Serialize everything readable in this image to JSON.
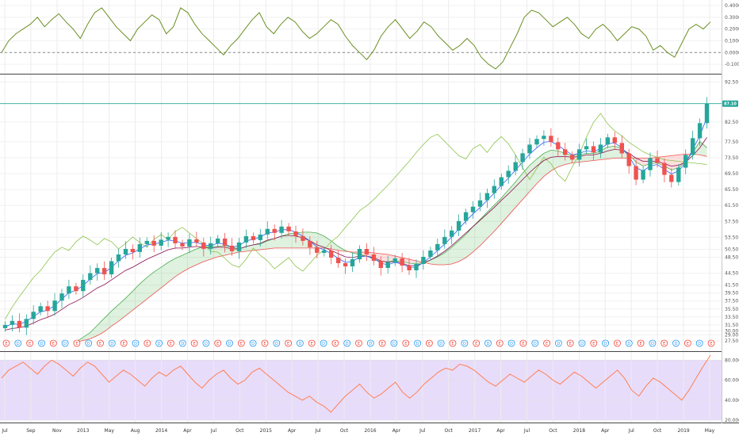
{
  "chart_data": [
    {
      "type": "line",
      "panel": "top-oscillator",
      "y_ticks": [
        "0.4000",
        "0.3000",
        "0.2000",
        "0.1000",
        "0.0000",
        "-0.1000"
      ],
      "ylim": [
        -0.16,
        0.42
      ],
      "zero_line": true,
      "x": [
        0,
        1,
        2,
        3,
        4,
        5,
        6,
        7,
        8,
        9,
        10,
        11,
        12,
        13,
        14,
        15,
        16,
        17,
        18,
        19,
        20,
        21,
        22,
        23,
        24,
        25,
        26,
        27,
        28,
        29,
        30,
        31,
        32,
        33,
        34,
        35,
        36,
        37,
        38,
        39,
        40,
        41,
        42,
        43,
        44,
        45,
        46,
        47,
        48,
        49,
        50,
        51,
        52,
        53,
        54,
        55,
        56,
        57,
        58,
        59,
        60,
        61,
        62,
        63,
        64,
        65,
        66,
        67,
        68,
        69,
        70,
        71,
        72,
        73,
        74,
        75,
        76,
        77,
        78,
        79,
        80,
        81,
        82,
        83,
        84,
        85,
        86,
        87,
        88,
        89,
        90,
        91,
        92,
        93,
        94,
        95,
        96,
        97,
        98,
        99
      ],
      "series": [
        {
          "color": "#6b8f23",
          "values": [
            0.0,
            0.1,
            0.16,
            0.2,
            0.24,
            0.3,
            0.22,
            0.28,
            0.33,
            0.26,
            0.2,
            0.12,
            0.24,
            0.34,
            0.38,
            0.3,
            0.22,
            0.16,
            0.1,
            0.2,
            0.26,
            0.32,
            0.28,
            0.16,
            0.22,
            0.38,
            0.34,
            0.24,
            0.16,
            0.1,
            0.04,
            -0.02,
            0.06,
            0.12,
            0.2,
            0.28,
            0.34,
            0.22,
            0.16,
            0.24,
            0.3,
            0.26,
            0.18,
            0.12,
            0.16,
            0.22,
            0.28,
            0.24,
            0.14,
            0.06,
            0.0,
            -0.06,
            0.02,
            0.14,
            0.22,
            0.28,
            0.2,
            0.12,
            0.18,
            0.26,
            0.22,
            0.14,
            0.08,
            0.02,
            0.06,
            0.12,
            0.06,
            -0.04,
            -0.1,
            -0.14,
            -0.08,
            0.04,
            0.16,
            0.3,
            0.36,
            0.34,
            0.28,
            0.22,
            0.26,
            0.3,
            0.24,
            0.16,
            0.12,
            0.2,
            0.24,
            0.18,
            0.1,
            0.16,
            0.22,
            0.2,
            0.14,
            0.02,
            0.06,
            0.0,
            -0.04,
            0.08,
            0.2,
            0.24,
            0.2,
            0.26
          ]
        }
      ]
    },
    {
      "type": "candlestick",
      "panel": "main-price",
      "y_ticks": [
        "92.50",
        "82.50",
        "77.50",
        "73.50",
        "69.50",
        "65.50",
        "61.50",
        "57.50",
        "53.50",
        "50.50",
        "48.50",
        "44.50",
        "41.50",
        "39.50",
        "37.50",
        "35.50",
        "33.50",
        "31.50",
        "30.00",
        "29.00",
        "27.50"
      ],
      "ylim": [
        25.5,
        94
      ],
      "last_price": "87.10",
      "last_price_color": "#26a69a",
      "x_labels": [
        "Jul",
        "Sep",
        "Nov",
        "2013",
        "May",
        "Aug",
        "2014",
        "Apr",
        "Jul",
        "Oct",
        "2015",
        "Apr",
        "Jul",
        "Oct",
        "2016",
        "Apr",
        "Jul",
        "Oct",
        "2017",
        "Apr",
        "Jul",
        "Oct",
        "2018",
        "Apr",
        "Jul",
        "Oct",
        "2019",
        "May"
      ],
      "grid": true,
      "indicator": "Ichimoku Cloud",
      "up_color": "#26a69a",
      "down_color": "#ef5350",
      "series": [
        {
          "name": "",
          "role": "close",
          "values": [
            31.5,
            32.5,
            30.8,
            33.0,
            34.8,
            36.2,
            35.0,
            37.6,
            39.4,
            41.2,
            40.0,
            42.8,
            44.5,
            45.8,
            44.2,
            47.5,
            49.2,
            50.6,
            49.8,
            51.8,
            52.6,
            51.4,
            52.9,
            53.6,
            52.0,
            51.2,
            53.0,
            52.2,
            50.6,
            52.0,
            53.2,
            51.4,
            50.0,
            52.2,
            53.8,
            52.8,
            54.2,
            55.6,
            54.6,
            56.2,
            55.0,
            53.8,
            52.6,
            51.0,
            49.6,
            50.2,
            48.4,
            47.0,
            46.2,
            48.0,
            50.6,
            49.2,
            47.6,
            45.8,
            47.2,
            48.2,
            46.4,
            45.2,
            46.8,
            48.6,
            50.2,
            51.8,
            53.6,
            55.2,
            57.6,
            59.8,
            61.2,
            62.8,
            64.6,
            66.4,
            68.6,
            70.2,
            72.4,
            74.6,
            76.8,
            78.2,
            79.0,
            77.4,
            75.6,
            74.2,
            73.0,
            75.6,
            76.4,
            74.8,
            76.8,
            78.6,
            77.2,
            74.6,
            71.4,
            68.0,
            70.4,
            73.4,
            72.2,
            69.2,
            67.4,
            71.0,
            74.2,
            78.4,
            82.2,
            87.1
          ]
        },
        {
          "name": "",
          "role": "tenkan",
          "color": "#2962ff",
          "values": [
            31.0,
            31.8,
            31.6,
            32.4,
            33.6,
            34.8,
            35.2,
            36.4,
            38.0,
            39.6,
            40.2,
            41.4,
            43.0,
            44.4,
            44.6,
            46.0,
            47.6,
            49.0,
            49.6,
            50.6,
            51.6,
            51.8,
            52.2,
            52.8,
            52.6,
            52.0,
            52.2,
            52.2,
            51.6,
            51.4,
            52.0,
            51.8,
            51.0,
            51.4,
            52.6,
            53.0,
            53.6,
            54.6,
            54.8,
            55.4,
            55.4,
            54.8,
            53.8,
            52.6,
            51.0,
            50.4,
            49.4,
            48.2,
            47.2,
            47.4,
            48.6,
            48.8,
            48.2,
            47.0,
            46.6,
            47.2,
            46.8,
            46.0,
            46.0,
            47.2,
            48.6,
            50.2,
            51.8,
            53.6,
            55.6,
            57.6,
            59.4,
            61.0,
            62.8,
            64.6,
            66.6,
            68.4,
            70.4,
            72.4,
            74.4,
            76.0,
            77.4,
            77.6,
            76.6,
            75.4,
            74.2,
            74.6,
            75.2,
            75.0,
            75.8,
            77.0,
            77.2,
            76.0,
            73.8,
            71.0,
            70.2,
            71.4,
            71.8,
            70.6,
            69.4,
            70.2,
            72.2,
            75.6,
            79.0,
            83.6
          ]
        },
        {
          "name": "",
          "role": "kijun",
          "color": "#880e4f",
          "values": [
            30.2,
            30.6,
            30.8,
            31.2,
            32.0,
            32.8,
            33.4,
            34.2,
            35.4,
            36.6,
            37.4,
            38.4,
            39.6,
            40.8,
            41.6,
            42.8,
            44.0,
            45.2,
            46.0,
            47.0,
            48.0,
            48.8,
            49.6,
            50.4,
            50.8,
            50.8,
            51.0,
            51.2,
            51.0,
            50.8,
            51.0,
            51.0,
            50.6,
            50.6,
            51.2,
            51.6,
            52.0,
            52.8,
            53.2,
            53.8,
            54.0,
            53.8,
            53.4,
            52.6,
            51.6,
            51.0,
            50.2,
            49.4,
            48.6,
            48.4,
            48.8,
            48.8,
            48.4,
            47.6,
            47.2,
            47.4,
            47.0,
            46.4,
            46.4,
            47.0,
            47.8,
            48.8,
            50.0,
            51.4,
            53.0,
            54.6,
            56.2,
            57.8,
            59.4,
            61.0,
            62.8,
            64.4,
            66.2,
            68.0,
            69.8,
            71.4,
            72.8,
            73.6,
            73.8,
            73.8,
            73.6,
            73.8,
            74.2,
            74.2,
            74.6,
            75.2,
            75.6,
            75.4,
            74.6,
            73.4,
            72.6,
            72.6,
            72.6,
            72.0,
            71.4,
            71.6,
            72.4,
            74.0,
            76.0,
            78.6
          ]
        },
        {
          "name": "",
          "role": "chikou",
          "color": "#8bc34a",
          "values": [
            33.0,
            36.0,
            38.6,
            41.0,
            43.4,
            45.2,
            47.6,
            49.8,
            51.0,
            50.2,
            52.4,
            53.8,
            52.8,
            51.6,
            53.2,
            52.4,
            50.6,
            52.0,
            53.6,
            52.2,
            51.0,
            53.0,
            54.2,
            53.0,
            55.0,
            56.0,
            54.6,
            53.2,
            51.8,
            50.0,
            49.8,
            48.2,
            46.6,
            46.0,
            48.0,
            50.8,
            49.0,
            47.6,
            45.6,
            47.0,
            48.4,
            46.2,
            45.0,
            47.0,
            49.0,
            50.4,
            52.4,
            53.8,
            56.0,
            58.0,
            60.2,
            61.4,
            63.0,
            64.8,
            66.6,
            68.6,
            70.6,
            72.6,
            74.8,
            76.8,
            78.6,
            79.4,
            77.6,
            75.8,
            74.0,
            73.2,
            75.8,
            76.8,
            74.8,
            77.2,
            78.8,
            77.0,
            74.2,
            71.0,
            68.0,
            70.8,
            73.6,
            72.0,
            69.2,
            67.6,
            71.2,
            74.4,
            78.6,
            82.4,
            84.6,
            82.0,
            80.2,
            79.0,
            77.4,
            76.2,
            75.0,
            74.2,
            73.6,
            73.0,
            72.8,
            72.6,
            72.4,
            72.2,
            72.0,
            71.8
          ]
        },
        {
          "name": "",
          "role": "senkou_a",
          "color": "#4caf50",
          "values": [
            null,
            null,
            null,
            null,
            null,
            null,
            null,
            null,
            null,
            null,
            27.2,
            28.4,
            29.6,
            31.4,
            33.2,
            35.0,
            36.6,
            38.2,
            40.0,
            41.8,
            43.4,
            44.8,
            46.0,
            47.2,
            48.2,
            49.0,
            49.8,
            50.6,
            51.2,
            51.2,
            51.2,
            51.4,
            51.0,
            50.6,
            51.2,
            51.6,
            51.8,
            52.6,
            53.2,
            53.8,
            54.4,
            54.6,
            54.8,
            54.8,
            54.6,
            53.8,
            52.6,
            51.2,
            50.2,
            49.6,
            49.2,
            48.8,
            48.0,
            47.4,
            47.4,
            47.6,
            47.4,
            47.0,
            46.8,
            47.2,
            47.8,
            48.6,
            49.6,
            51.0,
            52.6,
            54.2,
            56.2,
            58.0,
            59.8,
            61.6,
            63.4,
            65.4,
            67.4,
            69.6,
            71.6,
            73.2,
            74.6,
            75.4,
            75.2,
            74.6,
            74.0,
            74.2,
            74.6,
            74.6,
            75.2,
            76.2,
            76.4,
            75.8,
            74.4,
            72.4,
            71.4,
            72.0,
            72.2,
            71.4,
            70.4,
            71.0,
            72.4,
            74.8,
            77.6,
            76.0
          ]
        },
        {
          "name": "",
          "role": "senkou_b",
          "color": "#ef5350",
          "values": [
            null,
            null,
            null,
            null,
            null,
            null,
            null,
            null,
            null,
            null,
            27.2,
            27.6,
            28.0,
            28.8,
            29.8,
            31.2,
            32.4,
            33.8,
            35.2,
            36.6,
            38.0,
            39.4,
            40.8,
            42.2,
            43.6,
            44.8,
            45.8,
            46.6,
            47.4,
            48.0,
            48.6,
            49.0,
            49.4,
            49.8,
            50.0,
            50.2,
            50.4,
            50.6,
            50.8,
            50.8,
            50.8,
            50.8,
            50.8,
            50.8,
            50.8,
            50.8,
            50.6,
            50.2,
            50.0,
            49.8,
            49.8,
            49.8,
            49.6,
            49.4,
            49.2,
            48.8,
            48.4,
            48.0,
            47.6,
            47.2,
            46.8,
            46.6,
            46.6,
            46.8,
            47.4,
            48.4,
            49.8,
            51.4,
            53.2,
            55.0,
            57.0,
            59.0,
            61.0,
            63.0,
            65.0,
            67.0,
            68.8,
            70.2,
            71.2,
            71.8,
            72.2,
            72.4,
            72.6,
            72.8,
            73.0,
            73.2,
            73.4,
            73.4,
            73.4,
            73.4,
            73.4,
            73.4,
            73.6,
            73.8,
            74.0,
            74.2,
            74.4,
            74.4,
            74.2,
            73.8
          ]
        }
      ]
    },
    {
      "type": "line",
      "panel": "bottom-rsi",
      "y_ticks": [
        "80.0000",
        "60.0000",
        "40.0000",
        "20.0000"
      ],
      "ylim": [
        20,
        85
      ],
      "band": [
        20,
        80
      ],
      "band_color": "#e8dcfb",
      "series": [
        {
          "color": "#ff7f50",
          "values": [
            62,
            70,
            74,
            78,
            72,
            66,
            74,
            80,
            76,
            70,
            64,
            72,
            78,
            74,
            66,
            58,
            64,
            70,
            66,
            60,
            54,
            62,
            68,
            64,
            70,
            74,
            66,
            58,
            52,
            60,
            66,
            70,
            62,
            56,
            60,
            68,
            72,
            66,
            60,
            54,
            48,
            44,
            40,
            44,
            38,
            34,
            28,
            36,
            44,
            50,
            56,
            48,
            42,
            46,
            52,
            58,
            48,
            42,
            48,
            56,
            62,
            68,
            72,
            70,
            76,
            74,
            70,
            64,
            58,
            54,
            60,
            66,
            62,
            58,
            64,
            70,
            66,
            60,
            56,
            62,
            68,
            64,
            58,
            52,
            58,
            64,
            70,
            62,
            50,
            44,
            54,
            62,
            58,
            52,
            46,
            40,
            50,
            62,
            74,
            86
          ]
        }
      ]
    }
  ],
  "events": {
    "labels": [
      "E",
      "D",
      "E",
      "D",
      "E",
      "D",
      "E",
      "D",
      "E",
      "D",
      "E",
      "D",
      "E",
      "D",
      "E",
      "D",
      "E",
      "D",
      "E",
      "D",
      "E",
      "D",
      "E",
      "D",
      "E",
      "D",
      "E",
      "D",
      "E",
      "D",
      "E",
      "D",
      "E",
      "D",
      "E",
      "D",
      "E",
      "D",
      "E",
      "D",
      "E",
      "D",
      "E",
      "D",
      "E",
      "D",
      "E",
      "D",
      "E",
      "D",
      "E",
      "D",
      "E",
      "D",
      "E",
      "D",
      "E",
      "D",
      "E",
      "D",
      "E"
    ],
    "e_color": "#f44336",
    "d_color": "#2196f3"
  }
}
